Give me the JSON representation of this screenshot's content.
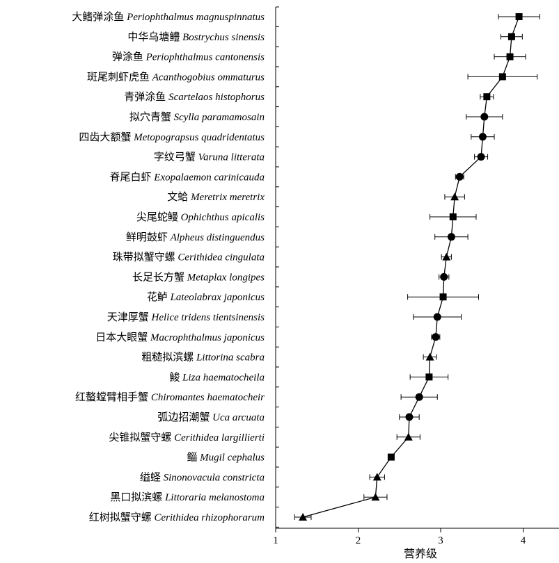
{
  "chart_data": {
    "type": "scatter",
    "xlabel": "营养级",
    "xlim": [
      1,
      4.45
    ],
    "xticks": [
      1,
      2,
      3,
      4
    ],
    "categories": [
      {
        "cn": "大鳍弹涂鱼",
        "latin": "Periophthalmus magnuspinnatus",
        "marker": "square",
        "x": 3.95,
        "err": 0.25
      },
      {
        "cn": "中华乌塘鳢",
        "latin": "Bostrychus sinensis",
        "marker": "square",
        "x": 3.86,
        "err": 0.13
      },
      {
        "cn": "弹涂鱼",
        "latin": "Periophthalmus cantonensis",
        "marker": "square",
        "x": 3.84,
        "err": 0.19
      },
      {
        "cn": "斑尾刺虾虎鱼",
        "latin": "Acanthogobius ommaturus",
        "marker": "square",
        "x": 3.75,
        "err": 0.42
      },
      {
        "cn": "青弹涂鱼",
        "latin": "Scartelaos histophorus",
        "marker": "square",
        "x": 3.56,
        "err": 0.08
      },
      {
        "cn": "拟穴青蟹",
        "latin": "Scylla paramamosain",
        "marker": "circle",
        "x": 3.53,
        "err": 0.22
      },
      {
        "cn": "四齿大额蟹",
        "latin": "Metopograpsus quadridentatus",
        "marker": "circle",
        "x": 3.51,
        "err": 0.14
      },
      {
        "cn": "字纹弓蟹",
        "latin": "Varuna litterata",
        "marker": "circle",
        "x": 3.49,
        "err": 0.08
      },
      {
        "cn": "脊尾白虾",
        "latin": "Exopalaemon carinicauda",
        "marker": "circle",
        "x": 3.23,
        "err": 0.05
      },
      {
        "cn": "文蛤",
        "latin": "Meretrix meretrix",
        "marker": "triangle",
        "x": 3.17,
        "err": 0.12
      },
      {
        "cn": "尖尾蛇鳗",
        "latin": "Ophichthus apicalis",
        "marker": "square",
        "x": 3.15,
        "err": 0.28
      },
      {
        "cn": "鲜明鼓虾",
        "latin": "Alpheus distinguendus",
        "marker": "circle",
        "x": 3.13,
        "err": 0.2
      },
      {
        "cn": "珠带拟蟹守螺",
        "latin": "Cerithidea cingulata",
        "marker": "triangle",
        "x": 3.07,
        "err": 0.06
      },
      {
        "cn": "长足长方蟹",
        "latin": "Metaplax longipes",
        "marker": "circle",
        "x": 3.04,
        "err": 0.06
      },
      {
        "cn": "花鲈",
        "latin": "Lateolabrax japonicus",
        "marker": "square",
        "x": 3.03,
        "err": 0.43
      },
      {
        "cn": "天津厚蟹",
        "latin": "Helice tridens tientsinensis",
        "marker": "circle",
        "x": 2.96,
        "err": 0.29
      },
      {
        "cn": "日本大眼蟹",
        "latin": "Macrophthalmus japonicus",
        "marker": "circle",
        "x": 2.94,
        "err": 0.05
      },
      {
        "cn": "粗糙拟滨螺",
        "latin": "Littorina scabra",
        "marker": "triangle",
        "x": 2.87,
        "err": 0.08
      },
      {
        "cn": "鮻",
        "latin": "Liza haematocheila",
        "marker": "square",
        "x": 2.86,
        "err": 0.23
      },
      {
        "cn": "红螯螳臂相手蟹",
        "latin": "Chiromantes haematocheir",
        "marker": "circle",
        "x": 2.74,
        "err": 0.22
      },
      {
        "cn": "弧边招潮蟹",
        "latin": "Uca arcuata",
        "marker": "circle",
        "x": 2.62,
        "err": 0.12
      },
      {
        "cn": "尖锥拟蟹守螺",
        "latin": "Cerithidea largillierti",
        "marker": "triangle",
        "x": 2.61,
        "err": 0.14
      },
      {
        "cn": "鲻",
        "latin": "Mugil cephalus",
        "marker": "square",
        "x": 2.4,
        "err": 0.03
      },
      {
        "cn": "缢蛏",
        "latin": "Sinonovacula constricta",
        "marker": "triangle",
        "x": 2.23,
        "err": 0.09
      },
      {
        "cn": "黑口拟滨螺",
        "latin": "Littoraria melanostoma",
        "marker": "triangle",
        "x": 2.21,
        "err": 0.14
      },
      {
        "cn": "红树拟蟹守螺",
        "latin": "Cerithidea rhizophorarum",
        "marker": "triangle",
        "x": 1.33,
        "err": 0.1
      }
    ]
  }
}
